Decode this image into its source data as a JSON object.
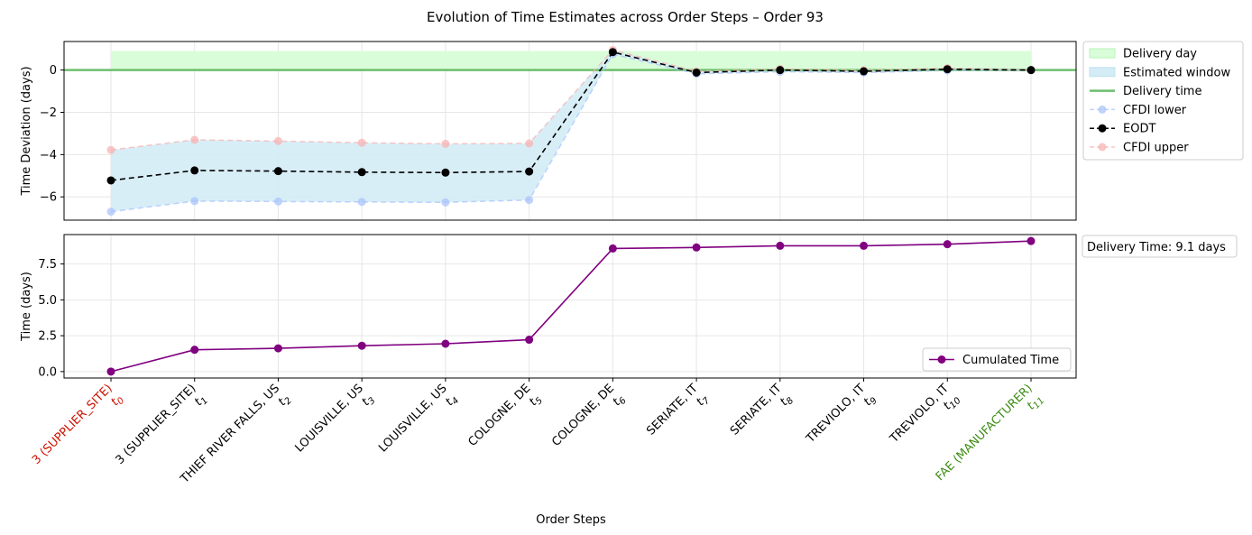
{
  "figure": {
    "title": "Evolution of Time Estimates across Order Steps – Order 93",
    "xlabel": "Order Steps"
  },
  "colors": {
    "delivery_day": "#d9fdd9",
    "estimated_window": "#d4ecf6",
    "delivery_time": "#6dbf6d",
    "cfdi_lower": "#a9c4fb",
    "eodt": "#000000",
    "cfdi_upper": "#f7b3b3",
    "cumulated": "#800080",
    "first_label": "#cc1100",
    "last_label": "#3d8c14",
    "grid": "#e6e6e6"
  },
  "x_ticks": [
    {
      "name": "3 (SUPPLIER_SITE)",
      "sub": "0"
    },
    {
      "name": "3 (SUPPLIER_SITE)",
      "sub": "1"
    },
    {
      "name": "THIEF RIVER FALLS, US",
      "sub": "2"
    },
    {
      "name": "LOUISVILLE, US",
      "sub": "3"
    },
    {
      "name": "LOUISVILLE, US",
      "sub": "4"
    },
    {
      "name": "COLOGNE, DE",
      "sub": "5"
    },
    {
      "name": "COLOGNE, DE",
      "sub": "6"
    },
    {
      "name": "SERIATE, IT",
      "sub": "7"
    },
    {
      "name": "SERIATE, IT",
      "sub": "8"
    },
    {
      "name": "TREVIOLO, IT",
      "sub": "9"
    },
    {
      "name": "TREVIOLO, IT",
      "sub": "10"
    },
    {
      "name": "FAE (MANUFACTURER)",
      "sub": "11"
    }
  ],
  "chart_data": [
    {
      "type": "line",
      "ylabel": "Time Deviation (days)",
      "ylim": [
        -7.1,
        1.35
      ],
      "yticks": [
        0,
        -2,
        -4,
        -6
      ],
      "grid": true,
      "legend_position": "outside-right-top",
      "x": [
        0,
        1,
        2,
        3,
        4,
        5,
        6,
        7,
        8,
        9,
        10,
        11
      ],
      "delivery_day_band": [
        0,
        0.9
      ],
      "delivery_time_line": 0,
      "series": [
        {
          "name": "CFDI lower",
          "values": [
            -6.7,
            -6.2,
            -6.22,
            -6.24,
            -6.26,
            -6.15,
            0.75,
            -0.18,
            -0.08,
            -0.12,
            -0.02,
            0.0
          ]
        },
        {
          "name": "EODT",
          "values": [
            -5.22,
            -4.75,
            -4.78,
            -4.83,
            -4.85,
            -4.8,
            0.85,
            -0.12,
            0.0,
            -0.06,
            0.04,
            0.0
          ]
        },
        {
          "name": "CFDI upper",
          "values": [
            -3.78,
            -3.3,
            -3.36,
            -3.44,
            -3.49,
            -3.47,
            0.95,
            -0.06,
            0.05,
            -0.01,
            0.09,
            0.0
          ]
        }
      ],
      "legend": [
        "Delivery day",
        "Estimated window",
        "Delivery time",
        "CFDI lower",
        "EODT",
        "CFDI upper"
      ]
    },
    {
      "type": "line",
      "ylabel": "Time (days)",
      "ylim": [
        -0.45,
        9.55
      ],
      "yticks": [
        0.0,
        2.5,
        5.0,
        7.5
      ],
      "ytick_labels": [
        "0.0",
        "2.5",
        "5.0",
        "7.5"
      ],
      "grid": true,
      "legend_position": "lower-right",
      "x": [
        0,
        1,
        2,
        3,
        4,
        5,
        6,
        7,
        8,
        9,
        10,
        11
      ],
      "series": [
        {
          "name": "Cumulated Time",
          "values": [
            0.0,
            1.52,
            1.62,
            1.8,
            1.94,
            2.22,
            8.58,
            8.65,
            8.77,
            8.77,
            8.88,
            9.1
          ]
        }
      ],
      "annotation": "Delivery Time: 9.1 days"
    }
  ]
}
